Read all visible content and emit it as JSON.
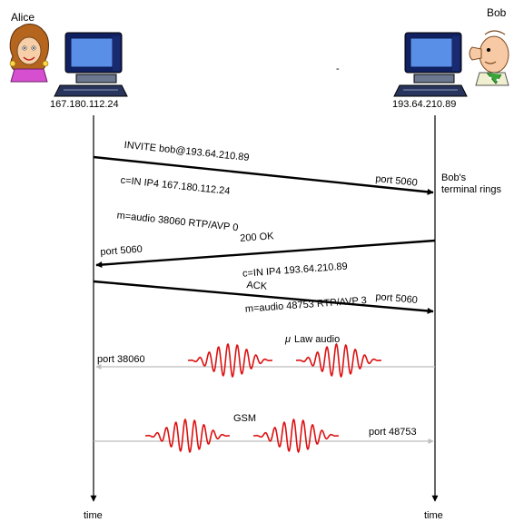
{
  "participants": {
    "alice": {
      "name": "Alice",
      "ip": "167.180.112.24"
    },
    "bob": {
      "name": "Bob",
      "ip": "193.64.210.89"
    }
  },
  "timeline": {
    "label_left": "time",
    "label_right": "time"
  },
  "messages": {
    "invite": {
      "lines": [
        "INVITE bob@193.64.210.89",
        "c=IN IP4 167.180.112.24",
        "m=audio 38060 RTP/AVP 0"
      ],
      "port": "port 5060"
    },
    "ok": {
      "lines": [
        "200 OK",
        "c=IN IP4 193.64.210.89",
        "m=audio 48753 RTP/AVP 3"
      ],
      "port": "port 5060"
    },
    "ack": {
      "label": "ACK",
      "port": "port 5060"
    },
    "mulaw": {
      "symbol": "μ",
      "label": "Law audio",
      "port": "port 38060"
    },
    "gsm": {
      "label": "GSM",
      "port": "port 48753"
    }
  },
  "annotations": {
    "bob_rings": [
      "Bob's",
      "terminal rings"
    ],
    "separator": "-"
  },
  "colors": {
    "message_arrow": "#000000",
    "media_arrow": "#bdbdbd",
    "waveform": "#dd1111",
    "lifeline": "#000000"
  }
}
